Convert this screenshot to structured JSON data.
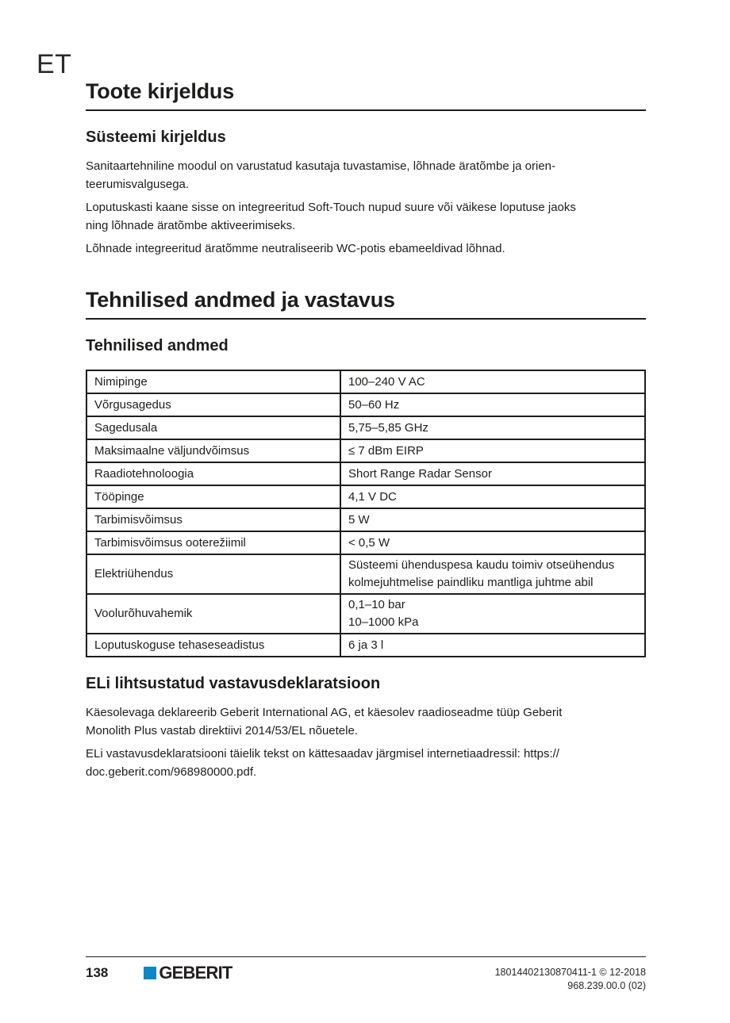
{
  "page": {
    "lang_code": "ET",
    "page_number": "138",
    "brand": "GEBERIT",
    "doc_ref_line1": "18014402130870411-1 © 12-2018",
    "doc_ref_line2": "968.239.00.0 (02)"
  },
  "colors": {
    "brand_blue": "#0e87c6",
    "text": "#1d1d1b"
  },
  "product_section": {
    "title": "Toote kirjeldus",
    "system": {
      "heading": "Süsteemi kirjeldus",
      "paragraphs": [
        "Sanitaartehniline moodul on varustatud kasutaja tuvastamise, lõhnade äratõmbe ja orien-\nteerumisvalgusega.",
        "Loputuskasti kaane sisse on integreeritud Soft-Touch nupud suure või väikese loputuse jaoks\nning lõhnade äratõmbe aktiveerimiseks.",
        "Lõhnade integreeritud äratõmme neutraliseerib WC-potis ebameeldivad lõhnad."
      ]
    }
  },
  "technical_section": {
    "title": "Tehnilised andmed ja vastavus",
    "data_heading": "Tehnilised andmed",
    "table": {
      "rows": [
        {
          "label": "Nimipinge",
          "value": "100–240 V AC"
        },
        {
          "label": "Võrgusagedus",
          "value": "50–60 Hz"
        },
        {
          "label": "Sagedusala",
          "value": "5,75–5,85 GHz"
        },
        {
          "label": "Maksimaalne väljundvõimsus",
          "value": "≤ 7 dBm EIRP"
        },
        {
          "label": "Raadiotehnoloogia",
          "value": "Short Range Radar Sensor"
        },
        {
          "label": "Tööpinge",
          "value": "4,1 V DC"
        },
        {
          "label": "Tarbimisvõimsus",
          "value": "5 W"
        },
        {
          "label": "Tarbimisvõimsus ooterežiimil",
          "value": "< 0,5 W"
        },
        {
          "label": "Elektriühendus",
          "value": "Süsteemi ühenduspesa kaudu toimiv otseühendus\nkolmejuhtmelise paindliku mantliga juhtme abil"
        },
        {
          "label": "Voolurõhuvahemik",
          "value": "0,1–10 bar\n10–1000 kPa"
        },
        {
          "label": "Loputuskoguse tehaseseadistus",
          "value": "6 ja 3 l"
        }
      ]
    },
    "declaration": {
      "heading": "ELi lihtsustatud vastavusdeklaratsioon",
      "paragraphs": [
        "Käesolevaga deklareerib Geberit International AG, et käesolev raadioseadme tüüp Geberit\nMonolith Plus vastab direktiivi 2014/53/EL nõuetele.",
        "ELi vastavusdeklaratsiooni täielik tekst on kättesaadav järgmisel internetiaadressil: https://\ndoc.geberit.com/968980000.pdf."
      ]
    }
  }
}
